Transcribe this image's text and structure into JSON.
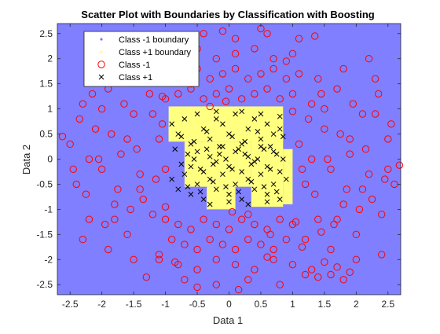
{
  "chart_data": {
    "type": "scatter",
    "title": "Scatter Plot with Boundaries by Classification with Boosting",
    "xlabel": "Data 1",
    "ylabel": "Data 2",
    "xlim": [
      -2.7,
      2.7
    ],
    "ylim": [
      -2.7,
      2.7
    ],
    "x_ticks": [
      -2.5,
      -2,
      -1.5,
      -1,
      -0.5,
      0,
      0.5,
      1,
      1.5,
      2,
      2.5
    ],
    "y_ticks": [
      -2.5,
      -2,
      -1.5,
      -1,
      -0.5,
      0,
      0.5,
      1,
      1.5,
      2,
      2.5
    ],
    "x_tick_labels": [
      "-2.5",
      "-2",
      "-1.5",
      "-1",
      "-0.5",
      "0",
      "0.5",
      "1",
      "1.5",
      "2",
      "2.5"
    ],
    "y_tick_labels": [
      "-2.5",
      "-2",
      "-1.5",
      "-1",
      "-0.5",
      "0",
      "0.5",
      "1",
      "1.5",
      "2",
      "2.5"
    ],
    "grid": false,
    "legend_position": "top-left",
    "legend": [
      {
        "label": "Class -1 boundary",
        "marker": "dot",
        "color": "#7b7bff"
      },
      {
        "label": "Class +1 boundary",
        "marker": "dot",
        "color": "#ffff80"
      },
      {
        "label": "Class -1",
        "marker": "circle",
        "color": "#ff0000"
      },
      {
        "label": "Class +1",
        "marker": "x",
        "color": "#000000"
      }
    ],
    "colors": {
      "class_neg_region": "#7f7fff",
      "class_pos_region": "#ffff80",
      "class_neg_marker": "#ff0000",
      "class_pos_marker": "#000000"
    },
    "class_pos_region": [
      [
        -0.95,
        0.85,
        0.35,
        1.05
      ],
      [
        0.35,
        0.85,
        -0.95,
        0.85
      ],
      [
        -0.7,
        0.35,
        -0.55,
        0.35
      ],
      [
        -0.95,
        -0.7,
        0.35,
        0.7
      ],
      [
        0.85,
        1.0,
        -0.9,
        0.2
      ],
      [
        -0.35,
        0.1,
        -1.0,
        -0.55
      ]
    ],
    "series": [
      {
        "name": "Class -1",
        "marker": "circle",
        "x": [
          -2.5,
          -2.4,
          -2.3,
          -2.2,
          -2.1,
          -2.0,
          -1.9,
          -1.8,
          -1.7,
          -1.6,
          -1.5,
          -1.4,
          -1.3,
          -1.2,
          -1.1,
          -2.45,
          -2.35,
          -2.25,
          -2.15,
          -2.05,
          -1.95,
          -1.85,
          -1.75,
          -1.65,
          -1.55,
          -1.45,
          -1.35,
          -1.25,
          -1.15,
          -1.05,
          -2.3,
          -2.1,
          -1.9,
          -1.7,
          -1.5,
          -1.3,
          -1.1,
          -2.2,
          -2.0,
          -1.8,
          -1.6,
          -1.4,
          -1.2,
          -1.0,
          1.1,
          1.2,
          1.3,
          1.4,
          1.5,
          1.6,
          1.7,
          1.8,
          1.9,
          2.0,
          2.1,
          2.2,
          2.3,
          2.4,
          2.5,
          2.6,
          1.15,
          1.25,
          1.35,
          1.45,
          1.55,
          1.65,
          1.75,
          1.85,
          1.95,
          2.05,
          2.15,
          2.25,
          2.35,
          2.45,
          2.55,
          1.2,
          1.4,
          1.6,
          1.8,
          2.0,
          2.2,
          2.4,
          1.3,
          1.5,
          1.7,
          1.9,
          2.1,
          2.3,
          2.5,
          -1.0,
          -0.8,
          -0.6,
          -0.4,
          -0.2,
          0.0,
          0.2,
          0.4,
          0.6,
          0.8,
          1.0,
          -0.9,
          -0.7,
          -0.5,
          -0.3,
          -0.1,
          0.1,
          0.3,
          0.5,
          0.7,
          0.9,
          -1.1,
          -0.8,
          -0.5,
          -0.2,
          0.1,
          0.4,
          0.7,
          1.0,
          -1.0,
          -0.8,
          -0.6,
          -0.4,
          -0.2,
          0.0,
          0.2,
          0.4,
          0.6,
          0.8,
          1.0,
          -0.9,
          -0.7,
          -0.5,
          -0.3,
          -0.1,
          0.1,
          0.3,
          0.5,
          0.7,
          0.9,
          -1.1,
          -0.8,
          -0.5,
          -0.2,
          0.1,
          0.4,
          0.7,
          1.0,
          -0.9,
          -0.4,
          0.1,
          0.6,
          1.1,
          -0.7,
          -0.2,
          0.3,
          0.8,
          -1.2,
          -1.3,
          -1.4,
          -1.5,
          -1.6,
          -1.7,
          -1.8,
          -1.9,
          1.2,
          1.3,
          1.4,
          1.5,
          1.6,
          1.7,
          1.8,
          1.9,
          -2.62,
          2.68,
          -0.1,
          0.15,
          0.5,
          -0.5,
          -1.3,
          1.35,
          0.9,
          -0.85,
          0.6,
          1.1,
          1.45,
          1.15,
          0.05,
          -0.05,
          0.3,
          -0.3,
          1.0,
          -1.0,
          -0.6,
          0.65,
          -1.05,
          1.05
        ],
        "y": [
          0.3,
          -0.5,
          1.1,
          -1.2,
          0.6,
          -0.2,
          1.4,
          -0.9,
          0.1,
          -1.5,
          0.9,
          -0.3,
          1.6,
          -1.1,
          0.4,
          -0.2,
          0.8,
          -0.7,
          1.3,
          0.0,
          -1.3,
          0.5,
          -0.6,
          1.1,
          -1.0,
          0.2,
          -0.8,
          1.3,
          -0.4,
          0.7,
          -1.6,
          1.6,
          -1.8,
          1.8,
          -2.0,
          2.0,
          -1.9,
          0.0,
          1.0,
          -1.2,
          0.4,
          -0.6,
          0.9,
          -0.2,
          0.3,
          -0.5,
          1.1,
          -1.2,
          0.6,
          -0.2,
          1.4,
          -0.9,
          0.1,
          -1.5,
          0.9,
          -0.3,
          1.6,
          -1.1,
          0.4,
          -0.5,
          -0.2,
          0.8,
          -0.7,
          1.3,
          0.0,
          -1.3,
          0.5,
          -0.6,
          1.1,
          -1.0,
          0.2,
          -0.8,
          1.3,
          -0.4,
          0.7,
          -1.6,
          1.6,
          -1.8,
          1.8,
          -2.0,
          2.0,
          -1.9,
          0.0,
          1.0,
          -1.2,
          0.4,
          -0.6,
          0.9,
          -0.2,
          -1.2,
          -1.3,
          -1.4,
          -1.2,
          -1.3,
          -1.4,
          -1.2,
          -1.3,
          -1.4,
          -1.2,
          -1.3,
          -1.6,
          -1.7,
          -1.8,
          -1.6,
          -1.7,
          -1.8,
          -1.6,
          -1.7,
          -1.8,
          -1.6,
          -2.0,
          -2.1,
          -2.2,
          -2.0,
          -2.1,
          -2.2,
          -2.0,
          -2.1,
          1.2,
          1.3,
          1.4,
          1.2,
          1.3,
          1.4,
          1.2,
          1.3,
          1.4,
          1.2,
          1.3,
          1.6,
          1.7,
          1.8,
          1.6,
          1.7,
          1.8,
          1.6,
          1.7,
          1.8,
          1.6,
          2.0,
          2.1,
          2.2,
          2.0,
          2.1,
          2.2,
          2.0,
          2.1,
          2.4,
          2.5,
          2.4,
          2.5,
          2.4,
          -2.4,
          -2.5,
          -2.4,
          -2.5,
          2.3,
          2.2,
          2.35,
          2.05,
          2.3,
          2.15,
          2.4,
          2.25,
          -2.3,
          -2.2,
          -2.35,
          -2.05,
          -2.3,
          -2.15,
          -2.4,
          -2.25,
          0.45,
          -0.12,
          2.55,
          -2.6,
          2.6,
          -2.55,
          -2.35,
          2.45,
          1.95,
          -2.05,
          -1.95,
          1.7,
          -1.45,
          -1.75,
          -1.05,
          1.15,
          -1.1,
          1.05,
          0.95,
          -0.95,
          1.5,
          -1.5,
          1.25,
          -1.25
        ]
      },
      {
        "name": "Class +1",
        "marker": "x",
        "x": [
          -0.9,
          -0.8,
          -0.7,
          -0.6,
          -0.5,
          -0.4,
          -0.3,
          -0.2,
          -0.1,
          0.0,
          0.1,
          0.2,
          0.3,
          0.4,
          0.5,
          0.6,
          0.7,
          0.8,
          -0.85,
          -0.75,
          -0.65,
          -0.55,
          -0.45,
          -0.35,
          -0.25,
          -0.15,
          -0.05,
          0.05,
          0.15,
          0.25,
          0.35,
          0.45,
          0.55,
          0.65,
          0.75,
          0.85,
          -0.9,
          -0.7,
          -0.5,
          -0.3,
          -0.1,
          0.1,
          0.3,
          0.5,
          0.7,
          0.9,
          -0.8,
          -0.6,
          -0.4,
          -0.2,
          0.0,
          0.2,
          0.4,
          0.6,
          0.8,
          -0.75,
          -0.55,
          -0.35,
          -0.15,
          0.05,
          0.25,
          0.45,
          0.65,
          0.85,
          -0.6,
          -0.4,
          -0.2,
          0.0,
          0.2,
          0.4,
          0.6,
          0.8,
          -0.5,
          -0.3,
          -0.1,
          0.1,
          0.3,
          0.5,
          0.7,
          -0.65,
          -0.45,
          -0.25,
          -0.05,
          0.15,
          0.35,
          0.55,
          0.75,
          -0.3,
          0.0,
          0.3,
          0.6,
          -0.2,
          0.2,
          0.5,
          0.8
        ],
        "y": [
          0.7,
          0.5,
          0.8,
          0.3,
          0.9,
          0.6,
          0.4,
          0.8,
          0.7,
          0.5,
          0.9,
          0.3,
          0.6,
          0.8,
          0.4,
          0.7,
          0.5,
          0.6,
          0.2,
          -0.1,
          0.1,
          0.0,
          -0.2,
          0.2,
          -0.1,
          0.1,
          0.0,
          -0.2,
          0.2,
          0.1,
          -0.1,
          0.0,
          0.2,
          -0.2,
          0.1,
          0.0,
          -0.4,
          -0.3,
          -0.5,
          -0.4,
          -0.3,
          -0.5,
          -0.4,
          -0.3,
          -0.5,
          -0.4,
          -0.6,
          -0.7,
          -0.8,
          -0.6,
          -0.7,
          -0.8,
          -0.6,
          -0.7,
          -0.8,
          0.45,
          0.35,
          0.55,
          0.25,
          0.45,
          0.35,
          0.55,
          0.25,
          0.45,
          -0.15,
          -0.25,
          -0.05,
          -0.15,
          -0.25,
          -0.05,
          -0.15,
          -0.25,
          0.15,
          0.05,
          0.25,
          0.15,
          0.05,
          0.25,
          0.15,
          -0.55,
          -0.65,
          -0.45,
          -0.55,
          -0.65,
          -0.45,
          -0.55,
          -0.65,
          -0.9,
          -0.85,
          -0.9,
          -0.85,
          0.95,
          0.95,
          0.9,
          0.85
        ]
      }
    ]
  }
}
